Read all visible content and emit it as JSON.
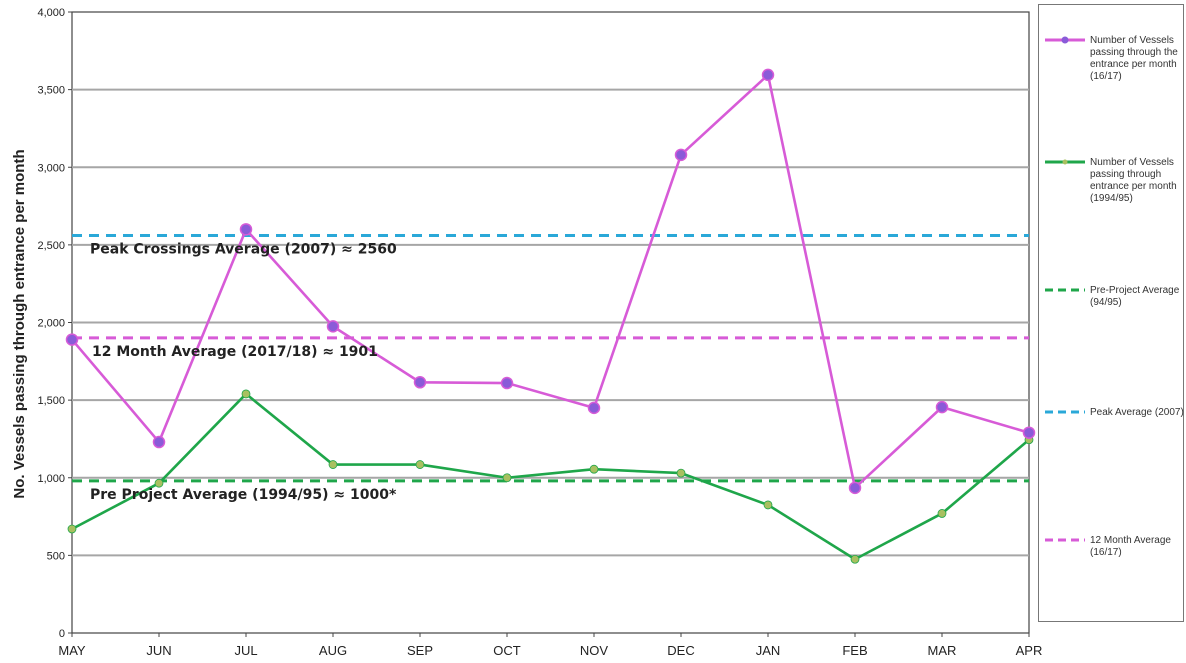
{
  "chart_data": {
    "type": "line",
    "title": "",
    "xlabel": "",
    "ylabel": "No. Vessels passing through entrance per month",
    "ylim": [
      0,
      4000
    ],
    "yticks": [
      "0",
      "500",
      "1,000",
      "1,500",
      "2,000",
      "2,500",
      "3,000",
      "3,500",
      "4,000"
    ],
    "ytick_values": [
      0,
      500,
      1000,
      1500,
      2000,
      2500,
      3000,
      3500,
      4000
    ],
    "categories": [
      "MAY",
      "JUN",
      "JUL",
      "AUG",
      "SEP",
      "OCT",
      "NOV",
      "DEC",
      "JAN",
      "FEB",
      "MAR",
      "APR"
    ],
    "grid": true,
    "legend_position": "right",
    "series": [
      {
        "name": "Number of Vessels passing through the entrance per month (16/17)",
        "color": "#d75bd7",
        "marker_color": "#8a5bd8",
        "style": "solid-markers",
        "values": [
          1890,
          1230,
          2600,
          1975,
          1615,
          1610,
          1450,
          3080,
          3595,
          935,
          1455,
          1290
        ]
      },
      {
        "name": "Number of Vessels passing through entrance per month (1994/95)",
        "color": "#1fa64a",
        "marker_color": "#a8c060",
        "style": "solid-markers",
        "values": [
          670,
          965,
          1540,
          1085,
          1085,
          1000,
          1055,
          1030,
          825,
          475,
          770,
          1245
        ]
      },
      {
        "name": "Pre-Project Average (94/95)",
        "color": "#1fa64a",
        "style": "dashed",
        "value": 980
      },
      {
        "name": "Peak Average (2007)",
        "color": "#2aa8d8",
        "style": "dashed",
        "value": 2560
      },
      {
        "name": "12 Month Average (16/17)",
        "color": "#d75bd7",
        "style": "dashed",
        "value": 1901
      }
    ],
    "annotations": [
      {
        "text": "Peak Crossings Average (2007) ≈ 2560",
        "anchor_value": 2560
      },
      {
        "text": "12 Month Average (2017/18) ≈ 1901",
        "anchor_value": 1901
      },
      {
        "text": "Pre Project Average (1994/95) ≈ 1000*",
        "anchor_value": 980
      }
    ]
  }
}
